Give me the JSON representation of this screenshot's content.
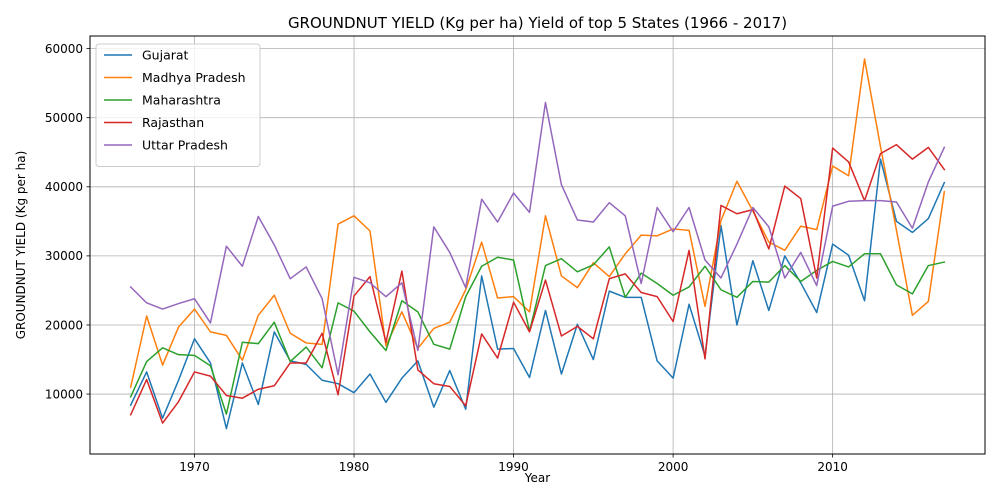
{
  "chart_data": {
    "type": "line",
    "title": "GROUNDNUT YIELD (Kg per ha) Yield of top 5 States (1966 - 2017)",
    "xlabel": "Year",
    "ylabel": "GROUNDNUT YIELD (Kg per ha)",
    "xlim": [
      1963.45,
      2019.55
    ],
    "ylim": [
      1325,
      61825
    ],
    "x_ticks": [
      1970,
      1980,
      1990,
      2000,
      2010
    ],
    "y_ticks": [
      10000,
      20000,
      30000,
      40000,
      50000,
      60000
    ],
    "grid": true,
    "legend_position": "top-left",
    "x": [
      1966,
      1967,
      1968,
      1969,
      1970,
      1971,
      1972,
      1973,
      1974,
      1975,
      1976,
      1977,
      1978,
      1979,
      1980,
      1981,
      1982,
      1983,
      1984,
      1985,
      1986,
      1987,
      1988,
      1989,
      1990,
      1991,
      1992,
      1993,
      1994,
      1995,
      1996,
      1997,
      1998,
      1999,
      2000,
      2001,
      2002,
      2003,
      2004,
      2005,
      2006,
      2007,
      2008,
      2009,
      2010,
      2011,
      2012,
      2013,
      2014,
      2015,
      2016,
      2017
    ],
    "series": [
      {
        "name": "Gujarat",
        "color": "#1f77b4",
        "values": [
          8400,
          13200,
          6500,
          12000,
          18000,
          14500,
          5000,
          14500,
          8500,
          19000,
          14800,
          14300,
          12000,
          11500,
          10200,
          12900,
          8800,
          12300,
          14800,
          8100,
          13400,
          7800,
          27100,
          16500,
          16600,
          12400,
          22100,
          12900,
          20100,
          15000,
          24900,
          24000,
          24000,
          14800,
          12300,
          23000,
          15500,
          34400,
          20000,
          29300,
          22100,
          30000,
          26100,
          21800,
          31700,
          30100,
          23500,
          44000,
          35000,
          33400,
          35400,
          40600
        ]
      },
      {
        "name": "Madhya Pradesh",
        "color": "#ff7f0e",
        "values": [
          11000,
          21300,
          14200,
          19700,
          22300,
          19000,
          18500,
          14900,
          21400,
          24300,
          18800,
          17400,
          17200,
          34600,
          35800,
          33600,
          17000,
          21900,
          16600,
          19500,
          20400,
          25100,
          32000,
          23900,
          24100,
          21900,
          35800,
          27100,
          25400,
          29000,
          27000,
          30300,
          33000,
          32900,
          33900,
          33700,
          22700,
          35100,
          40800,
          36500,
          32000,
          30800,
          34300,
          33800,
          43000,
          41600,
          58500,
          45800,
          33700,
          21400,
          23400,
          39300
        ]
      },
      {
        "name": "Maharashtra",
        "color": "#2ca02c",
        "values": [
          9600,
          14700,
          16700,
          15700,
          15600,
          14100,
          7100,
          17500,
          17300,
          20400,
          14700,
          16800,
          13800,
          23200,
          22000,
          19000,
          16300,
          23500,
          21900,
          17200,
          16500,
          24100,
          28500,
          29800,
          29400,
          19100,
          28600,
          29600,
          27700,
          28700,
          31300,
          24000,
          27500,
          26000,
          24300,
          25500,
          28500,
          25100,
          24000,
          26300,
          26200,
          28600,
          26300,
          27900,
          29200,
          28400,
          30300,
          30300,
          25800,
          24500,
          28600,
          29100
        ]
      },
      {
        "name": "Rajasthan",
        "color": "#d62728",
        "values": [
          7000,
          12100,
          5800,
          8900,
          13200,
          12600,
          9800,
          9400,
          10700,
          11200,
          14500,
          14500,
          18800,
          9900,
          24200,
          27000,
          17500,
          27800,
          13500,
          11500,
          11100,
          8300,
          18700,
          15200,
          23300,
          19000,
          26500,
          18400,
          19800,
          18000,
          26700,
          27400,
          24700,
          24100,
          20500,
          30800,
          15100,
          37300,
          36100,
          36700,
          31000,
          40100,
          38300,
          26800,
          45600,
          43600,
          38000,
          44800,
          46100,
          44000,
          45700,
          42500
        ]
      },
      {
        "name": "Uttar Pradesh",
        "color": "#9467bd",
        "values": [
          25500,
          23200,
          22300,
          23100,
          23800,
          20300,
          31400,
          28500,
          35700,
          31600,
          26700,
          28400,
          23800,
          12800,
          26900,
          26100,
          24100,
          26100,
          16300,
          34200,
          30500,
          25400,
          38200,
          34900,
          39100,
          36300,
          52200,
          40300,
          35200,
          34900,
          37700,
          35800,
          26000,
          37000,
          33500,
          37000,
          29400,
          26800,
          31700,
          37000,
          34200,
          26800,
          30500,
          25700,
          37200,
          37900,
          38000,
          38000,
          37800,
          34000,
          40700,
          45700
        ]
      }
    ]
  }
}
